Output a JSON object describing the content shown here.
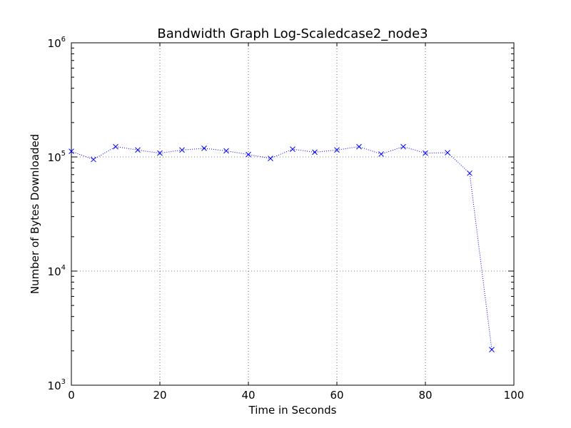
{
  "chart_data": {
    "type": "line",
    "title": "Bandwidth Graph Log-Scaledcase2_node3",
    "xlabel": "Time in Seconds",
    "ylabel": "Number of Bytes Downloaded",
    "xlim": [
      0,
      100
    ],
    "ylim": [
      1000,
      1000000
    ],
    "yscale": "log",
    "grid": true,
    "x_ticks": [
      0,
      20,
      40,
      60,
      80,
      100
    ],
    "y_ticks": [
      {
        "value": 1000,
        "base": "10",
        "exp": "3"
      },
      {
        "value": 10000,
        "base": "10",
        "exp": "4"
      },
      {
        "value": 100000,
        "base": "10",
        "exp": "5"
      },
      {
        "value": 1000000,
        "base": "10",
        "exp": "6"
      }
    ],
    "series": [
      {
        "color": "#0000ff",
        "marker": "x",
        "line_style": "dotted",
        "x": [
          0,
          5,
          10,
          15,
          20,
          25,
          30,
          35,
          40,
          45,
          50,
          55,
          60,
          65,
          70,
          75,
          80,
          85,
          90,
          95
        ],
        "y": [
          112000,
          95000,
          123000,
          115000,
          108000,
          115000,
          119000,
          113000,
          105000,
          97000,
          117000,
          110000,
          115000,
          123000,
          106000,
          123000,
          108000,
          109000,
          72000,
          2050
        ]
      }
    ]
  }
}
